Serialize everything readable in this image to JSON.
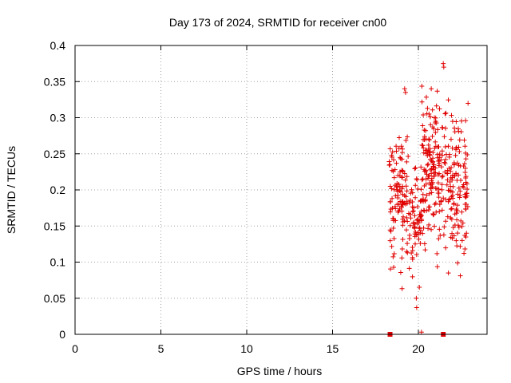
{
  "chart_data": {
    "type": "scatter",
    "title": "Day 173 of 2024, SRMTID for receiver cn00",
    "xlabel": "GPS time / hours",
    "ylabel": "SRMTID / TECUs",
    "xlim": [
      0,
      24
    ],
    "ylim": [
      0,
      0.4
    ],
    "x_ticks": [
      0,
      5,
      10,
      15,
      20
    ],
    "x_tick_labels": [
      "0",
      "5",
      "10",
      "15",
      "20"
    ],
    "y_ticks": [
      0,
      0.05,
      0.1,
      0.15,
      0.2,
      0.25,
      0.3,
      0.35,
      0.4
    ],
    "y_tick_labels": [
      "0",
      "0.05",
      "0.1",
      "0.15",
      "0.2",
      "0.25",
      "0.3",
      "0.35",
      "0.4"
    ],
    "grid": true,
    "marker": "+",
    "color": "#e00000",
    "zero_points_x": [
      18.35,
      21.45
    ],
    "clusters": [
      {
        "x_range": [
          18.3,
          19.45
        ],
        "y_center": 0.19,
        "y_spread": 0.085,
        "count": 120
      },
      {
        "x_range": [
          19.45,
          20.2
        ],
        "y_center": 0.16,
        "y_spread": 0.07,
        "count": 70
      },
      {
        "x_range": [
          20.2,
          21.2
        ],
        "y_center": 0.23,
        "y_spread": 0.095,
        "count": 140
      },
      {
        "x_range": [
          21.2,
          22.9
        ],
        "y_center": 0.21,
        "y_spread": 0.085,
        "count": 170
      }
    ],
    "notable_points": [
      {
        "x": 21.45,
        "y": 0.375
      },
      {
        "x": 21.48,
        "y": 0.37
      },
      {
        "x": 19.2,
        "y": 0.34
      },
      {
        "x": 19.25,
        "y": 0.335
      },
      {
        "x": 20.75,
        "y": 0.34
      },
      {
        "x": 19.9,
        "y": 0.037
      },
      {
        "x": 19.88,
        "y": 0.05
      },
      {
        "x": 20.18,
        "y": 0.003
      },
      {
        "x": 21.75,
        "y": 0.085
      },
      {
        "x": 22.55,
        "y": 0.13
      },
      {
        "x": 22.8,
        "y": 0.14
      }
    ]
  }
}
